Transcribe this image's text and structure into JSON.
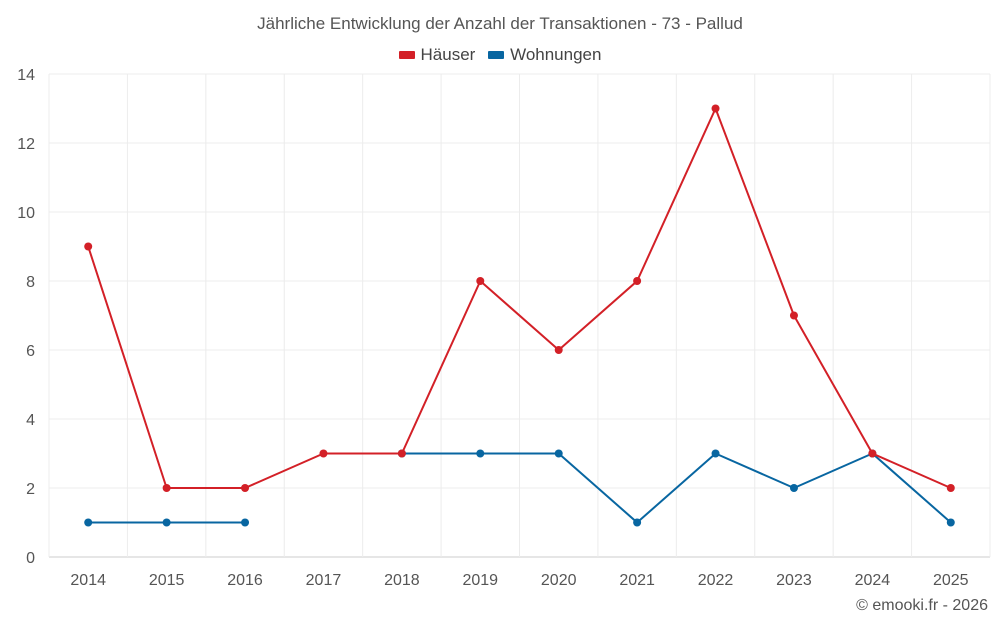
{
  "chart_data": {
    "type": "line",
    "title": "Jährliche Entwicklung der Anzahl der Transaktionen - 73 - Pallud",
    "categories": [
      "2014",
      "2015",
      "2016",
      "2017",
      "2018",
      "2019",
      "2020",
      "2021",
      "2022",
      "2023",
      "2024",
      "2025"
    ],
    "series": [
      {
        "name": "Häuser",
        "color": "#d32027",
        "values": [
          9,
          2,
          2,
          3,
          3,
          8,
          6,
          8,
          13,
          7,
          3,
          2
        ]
      },
      {
        "name": "Wohnungen",
        "color": "#0866a1",
        "values": [
          1,
          1,
          1,
          null,
          3,
          3,
          3,
          1,
          3,
          2,
          3,
          1
        ]
      }
    ],
    "yticks": [
      0,
      2,
      4,
      6,
      8,
      10,
      12,
      14
    ],
    "ylim": [
      0,
      14
    ],
    "xlabel": "",
    "ylabel": "",
    "grid": true,
    "legend_position": "top-center"
  },
  "credit": "© emooki.fr - 2026"
}
